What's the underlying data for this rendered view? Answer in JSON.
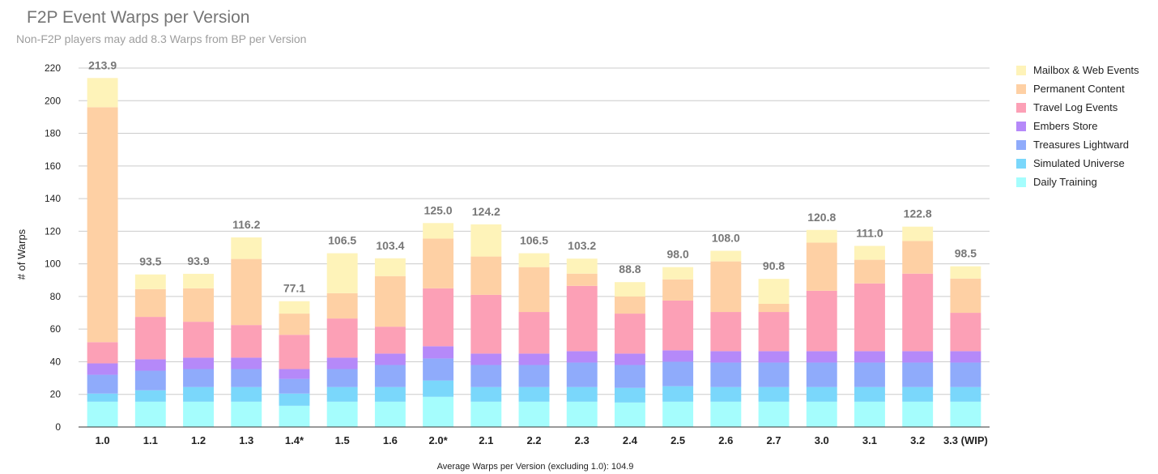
{
  "title": "F2P Event Warps per Version",
  "subtitle": "Non-F2P players may add 8.3 Warps from BP per Version",
  "chart_data": {
    "type": "bar",
    "stacked": true,
    "ylabel": "# of Warps",
    "xlabel": "Average Warps per Version (excluding 1.0): 104.9",
    "ylim": [
      0,
      220
    ],
    "yticks": [
      0,
      20,
      40,
      60,
      80,
      100,
      120,
      140,
      160,
      180,
      200,
      220
    ],
    "grid": true,
    "legend_position": "right",
    "categories": [
      "1.0",
      "1.1",
      "1.2",
      "1.3",
      "1.4*",
      "1.5",
      "1.6",
      "2.0*",
      "2.1",
      "2.2",
      "2.3",
      "2.4",
      "2.5",
      "2.6",
      "2.7",
      "3.0",
      "3.1",
      "3.2",
      "3.3 (WIP)"
    ],
    "totals": [
      "213.9",
      "93.5",
      "93.9",
      "116.2",
      "77.1",
      "106.5",
      "103.4",
      "125.0",
      "124.2",
      "106.5",
      "103.2",
      "88.8",
      "98.0",
      "108.0",
      "90.8",
      "120.8",
      "111.0",
      "122.8",
      "98.5"
    ],
    "series": [
      {
        "name": "Daily Training",
        "color": "#a5fdfd",
        "values": [
          15.5,
          15.5,
          15.5,
          15.5,
          13,
          15.5,
          15.5,
          18.5,
          15.5,
          15.5,
          15.5,
          15,
          15.5,
          15.5,
          15.5,
          15.5,
          15.5,
          15.5,
          15.5
        ]
      },
      {
        "name": "Simulated Universe",
        "color": "#7ad7fb",
        "values": [
          5,
          7,
          9,
          9,
          7.5,
          9,
          9,
          10,
          9,
          9,
          9,
          9,
          9.5,
          9,
          9,
          9,
          9,
          9,
          9
        ]
      },
      {
        "name": "Treasures Lightward",
        "color": "#8fabfb",
        "values": [
          11.5,
          12,
          11,
          11,
          9,
          11,
          13.5,
          13.5,
          13.5,
          13.5,
          15,
          14,
          15,
          15,
          15,
          15,
          15,
          15,
          15
        ]
      },
      {
        "name": "Embers Store",
        "color": "#b589f9",
        "values": [
          7,
          7,
          7,
          7,
          6,
          7,
          7,
          7.5,
          7,
          7,
          7,
          7,
          7,
          7,
          7,
          7,
          7,
          7,
          7
        ]
      },
      {
        "name": "Travel Log Events",
        "color": "#fca0b6",
        "values": [
          13,
          26,
          22,
          20,
          21,
          24,
          16.5,
          35.5,
          36,
          25.5,
          40,
          24.5,
          30.5,
          24,
          24,
          37,
          41.5,
          47.5,
          23.5
        ]
      },
      {
        "name": "Permanent Content",
        "color": "#fed0a4",
        "values": [
          144,
          17,
          20.5,
          40.5,
          13,
          15.5,
          31,
          30.5,
          23.5,
          27.5,
          7.5,
          10.5,
          13,
          31,
          5,
          29.5,
          14.5,
          20,
          21
        ]
      },
      {
        "name": "Mailbox & Web Events",
        "color": "#fef3b9",
        "values": [
          17.9,
          9,
          8.9,
          13.2,
          7.6,
          24.5,
          10.9,
          9.5,
          19.7,
          8.5,
          9.2,
          8.8,
          7.5,
          6.5,
          15.3,
          7.8,
          8.5,
          8.8,
          7.5
        ]
      }
    ]
  }
}
